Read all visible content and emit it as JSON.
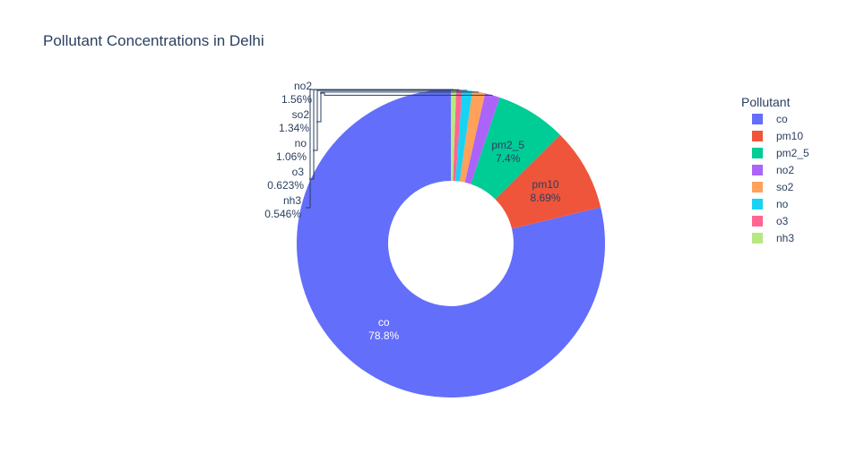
{
  "chart_data": {
    "type": "pie",
    "hole": true,
    "title": "Pollutant Concentrations in Delhi",
    "legend_title": "Pollutant",
    "legend_position": "right",
    "slices": [
      {
        "label": "co",
        "percent": 78.8,
        "percent_text": "78.8%",
        "color": "#636efa"
      },
      {
        "label": "pm10",
        "percent": 8.69,
        "percent_text": "8.69%",
        "color": "#ef553b"
      },
      {
        "label": "pm2_5",
        "percent": 7.4,
        "percent_text": "7.4%",
        "color": "#00cc96"
      },
      {
        "label": "no2",
        "percent": 1.56,
        "percent_text": "1.56%",
        "color": "#ab63fa"
      },
      {
        "label": "so2",
        "percent": 1.34,
        "percent_text": "1.34%",
        "color": "#ffa15a"
      },
      {
        "label": "no",
        "percent": 1.06,
        "percent_text": "1.06%",
        "color": "#19d3f3"
      },
      {
        "label": "o3",
        "percent": 0.623,
        "percent_text": "0.623%",
        "color": "#ff6692"
      },
      {
        "label": "nh3",
        "percent": 0.546,
        "percent_text": "0.546%",
        "color": "#b6e880"
      }
    ]
  }
}
